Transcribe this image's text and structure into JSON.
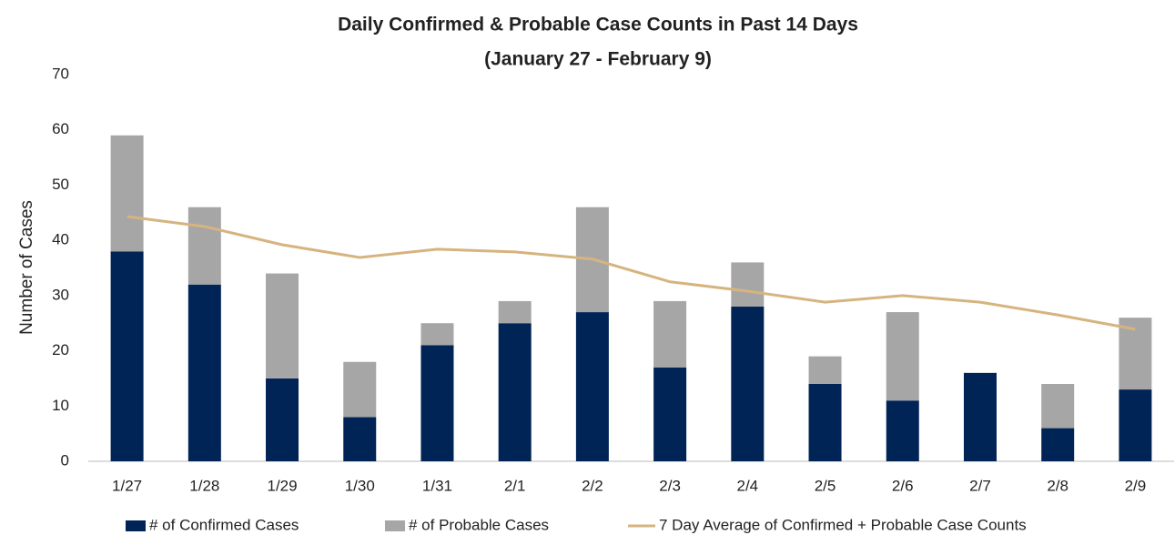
{
  "chart_data": {
    "type": "bar",
    "stacked": true,
    "title": "Daily Confirmed & Probable Case Counts in Past 14 Days",
    "subtitle": "(January 27 - February 9)",
    "y_label": "Number of Cases",
    "categories": [
      "1/27",
      "1/28",
      "1/29",
      "1/30",
      "1/31",
      "2/1",
      "2/2",
      "2/3",
      "2/4",
      "2/5",
      "2/6",
      "2/7",
      "2/8",
      "2/9"
    ],
    "series": [
      {
        "name": "# of Confirmed Cases",
        "type": "bar",
        "color": "#002456",
        "values": [
          38,
          32,
          15,
          8,
          21,
          25,
          27,
          17,
          28,
          14,
          11,
          16,
          6,
          13
        ]
      },
      {
        "name": "# of Probable Cases",
        "type": "bar",
        "color": "#a6a6a6",
        "values": [
          21,
          14,
          19,
          10,
          4,
          4,
          19,
          12,
          8,
          5,
          16,
          0,
          8,
          13
        ]
      },
      {
        "name": "7 Day Average of Confirmed + Probable Case Counts",
        "type": "line",
        "color": "#d6b47f",
        "values": [
          44.3,
          42.5,
          39.2,
          36.9,
          38.4,
          37.9,
          36.6,
          32.5,
          30.8,
          28.8,
          30.0,
          28.8,
          26.5,
          23.9
        ]
      }
    ],
    "ylim": [
      0,
      70
    ],
    "yticks": [
      0,
      10,
      20,
      30,
      40,
      50,
      60,
      70
    ],
    "grid": false,
    "legend": "bottom"
  }
}
